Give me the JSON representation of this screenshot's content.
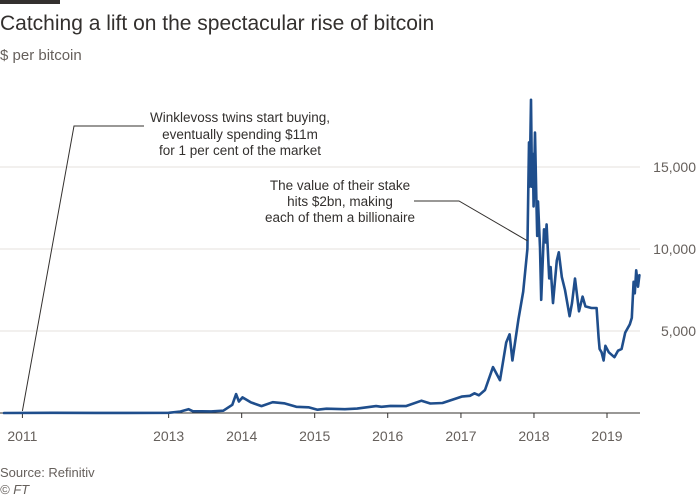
{
  "header": {
    "title": "Catching a lift on the spectacular rise of bitcoin",
    "subtitle": "$ per bitcoin"
  },
  "footer": {
    "source": "Source: Refinitiv",
    "credit": "© FT"
  },
  "colors": {
    "line": "#1f4e8c",
    "grid": "#e6e2dd",
    "axis": "#33302e",
    "text": "#33302e",
    "muted": "#66605c"
  },
  "chart_data": {
    "type": "line",
    "title": "Catching a lift on the spectacular rise of bitcoin",
    "ylabel": "$ per bitcoin",
    "xlabel": "",
    "x_range": [
      "2010-10-01",
      "2019-06-15"
    ],
    "ylim": [
      0,
      20000
    ],
    "y_ticks": [
      {
        "value": 5000,
        "label": "5,000"
      },
      {
        "value": 10000,
        "label": "10,000"
      },
      {
        "value": 15000,
        "label": "15,000"
      }
    ],
    "x_ticks": [
      {
        "date": "2011-01-01",
        "label": "2011"
      },
      {
        "date": "2013-01-01",
        "label": "2013"
      },
      {
        "date": "2014-01-01",
        "label": "2014"
      },
      {
        "date": "2015-01-01",
        "label": "2015"
      },
      {
        "date": "2016-01-01",
        "label": "2016"
      },
      {
        "date": "2017-01-01",
        "label": "2017"
      },
      {
        "date": "2018-01-01",
        "label": "2018"
      },
      {
        "date": "2019-01-01",
        "label": "2019"
      }
    ],
    "grid": true,
    "y_axis_side": "right",
    "series": [
      {
        "name": "",
        "points": [
          [
            "2010-10-01",
            0.1
          ],
          [
            "2011-06-01",
            15
          ],
          [
            "2012-01-01",
            6
          ],
          [
            "2012-06-01",
            6
          ],
          [
            "2013-01-01",
            14
          ],
          [
            "2013-03-01",
            90
          ],
          [
            "2013-04-10",
            230
          ],
          [
            "2013-05-01",
            110
          ],
          [
            "2013-08-01",
            100
          ],
          [
            "2013-10-01",
            140
          ],
          [
            "2013-11-15",
            500
          ],
          [
            "2013-12-04",
            1150
          ],
          [
            "2013-12-18",
            700
          ],
          [
            "2014-01-05",
            950
          ],
          [
            "2014-02-15",
            650
          ],
          [
            "2014-04-10",
            420
          ],
          [
            "2014-06-05",
            660
          ],
          [
            "2014-08-01",
            590
          ],
          [
            "2014-10-01",
            380
          ],
          [
            "2014-12-01",
            350
          ],
          [
            "2015-01-15",
            200
          ],
          [
            "2015-03-01",
            260
          ],
          [
            "2015-06-01",
            230
          ],
          [
            "2015-08-01",
            270
          ],
          [
            "2015-11-04",
            420
          ],
          [
            "2015-12-01",
            380
          ],
          [
            "2016-01-15",
            430
          ],
          [
            "2016-04-01",
            420
          ],
          [
            "2016-06-18",
            750
          ],
          [
            "2016-08-01",
            580
          ],
          [
            "2016-10-01",
            610
          ],
          [
            "2017-01-05",
            1000
          ],
          [
            "2017-02-15",
            1050
          ],
          [
            "2017-03-10",
            1200
          ],
          [
            "2017-04-01",
            1080
          ],
          [
            "2017-05-01",
            1400
          ],
          [
            "2017-06-10",
            2800
          ],
          [
            "2017-07-15",
            2000
          ],
          [
            "2017-08-15",
            4300
          ],
          [
            "2017-09-01",
            4800
          ],
          [
            "2017-09-15",
            3200
          ],
          [
            "2017-10-15",
            5700
          ],
          [
            "2017-11-08",
            7400
          ],
          [
            "2017-11-29",
            10000
          ],
          [
            "2017-12-07",
            16500
          ],
          [
            "2017-12-10",
            13800
          ],
          [
            "2017-12-17",
            19100
          ],
          [
            "2017-12-22",
            13800
          ],
          [
            "2017-12-26",
            15800
          ],
          [
            "2017-12-30",
            12600
          ],
          [
            "2018-01-06",
            17100
          ],
          [
            "2018-01-12",
            13500
          ],
          [
            "2018-01-17",
            10800
          ],
          [
            "2018-01-21",
            12900
          ],
          [
            "2018-01-31",
            10100
          ],
          [
            "2018-02-06",
            6900
          ],
          [
            "2018-02-20",
            11200
          ],
          [
            "2018-02-28",
            10400
          ],
          [
            "2018-03-05",
            11500
          ],
          [
            "2018-03-18",
            8200
          ],
          [
            "2018-03-25",
            8900
          ],
          [
            "2018-04-06",
            6700
          ],
          [
            "2018-04-25",
            9300
          ],
          [
            "2018-05-05",
            9800
          ],
          [
            "2018-05-20",
            8300
          ],
          [
            "2018-06-05",
            7500
          ],
          [
            "2018-06-28",
            5900
          ],
          [
            "2018-07-10",
            6700
          ],
          [
            "2018-07-25",
            8200
          ],
          [
            "2018-08-14",
            6200
          ],
          [
            "2018-09-01",
            7100
          ],
          [
            "2018-09-15",
            6500
          ],
          [
            "2018-10-15",
            6400
          ],
          [
            "2018-11-10",
            6400
          ],
          [
            "2018-11-20",
            4600
          ],
          [
            "2018-11-25",
            3900
          ],
          [
            "2018-12-05",
            3700
          ],
          [
            "2018-12-15",
            3200
          ],
          [
            "2018-12-24",
            4100
          ],
          [
            "2019-01-10",
            3700
          ],
          [
            "2019-02-07",
            3400
          ],
          [
            "2019-02-25",
            3800
          ],
          [
            "2019-03-15",
            3900
          ],
          [
            "2019-04-02",
            4900
          ],
          [
            "2019-04-25",
            5400
          ],
          [
            "2019-05-05",
            5800
          ],
          [
            "2019-05-14",
            8000
          ],
          [
            "2019-05-20",
            7300
          ],
          [
            "2019-05-27",
            8700
          ],
          [
            "2019-06-05",
            7700
          ],
          [
            "2019-06-12",
            8400
          ]
        ]
      }
    ],
    "annotations": [
      {
        "lines": [
          "Winklevoss twins start buying,",
          "eventually spending $11m",
          "for 1 per cent of the market"
        ],
        "date": "2011-01-01",
        "value": 0
      },
      {
        "lines": [
          "The value of their stake",
          "hits $2bn, making",
          "each of them a billionaire"
        ],
        "date": "2017-11-29",
        "value": 10500
      }
    ]
  }
}
